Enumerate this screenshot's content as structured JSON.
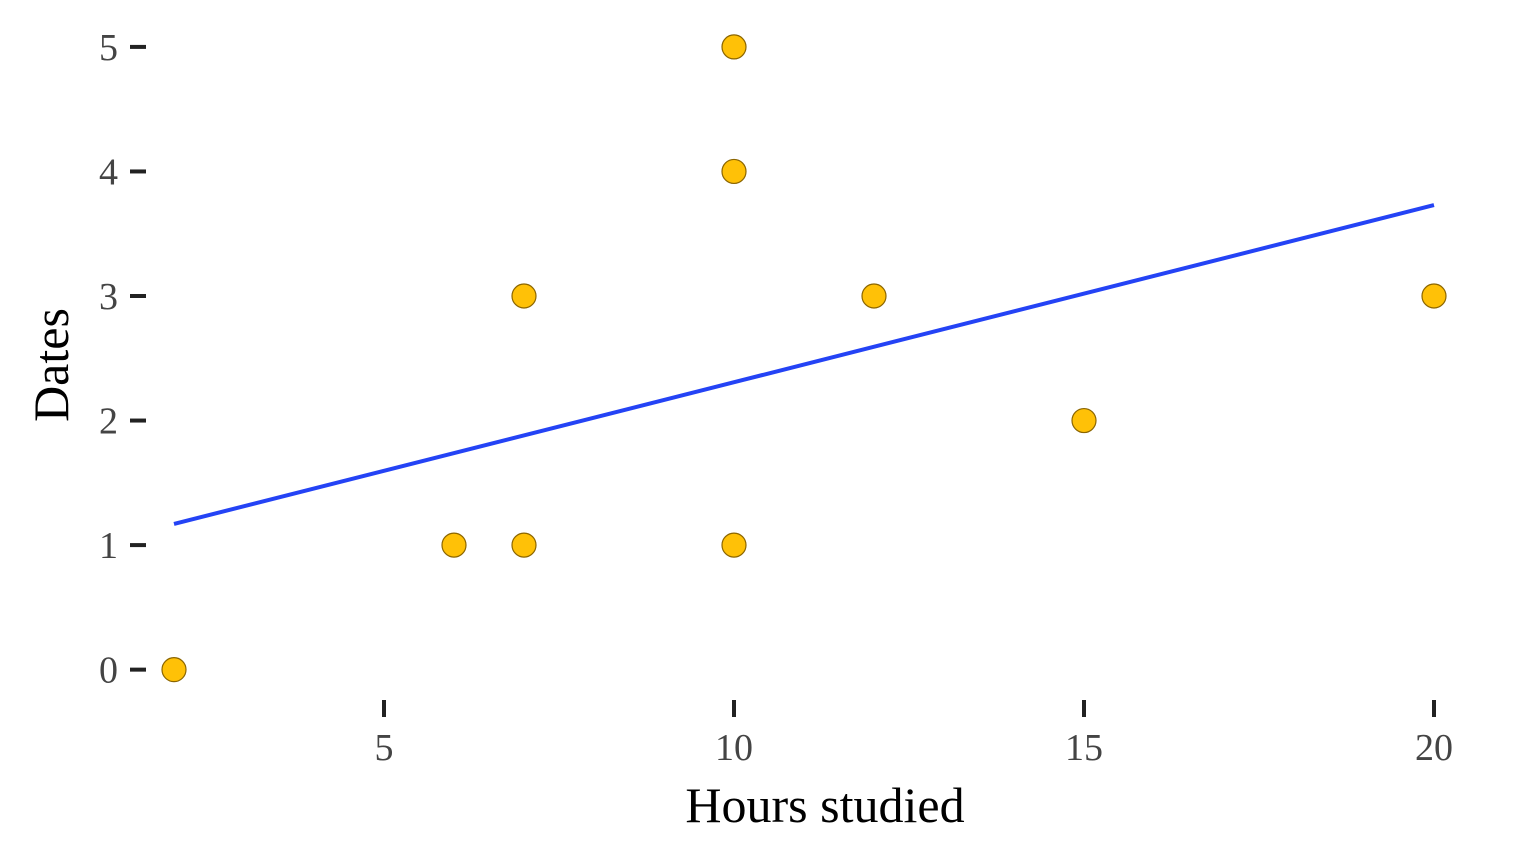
{
  "chart_data": {
    "type": "scatter",
    "title": "",
    "xlabel": "Hours studied",
    "ylabel": "Dates",
    "xlim": [
      1.8,
      20.8
    ],
    "ylim": [
      -0.3,
      5.2
    ],
    "x_ticks": [
      5,
      10,
      15,
      20
    ],
    "y_ticks": [
      0,
      1,
      2,
      3,
      4,
      5
    ],
    "grid": false,
    "legend": "none",
    "points": [
      {
        "x": 2,
        "y": 0
      },
      {
        "x": 6,
        "y": 1
      },
      {
        "x": 7,
        "y": 1
      },
      {
        "x": 7,
        "y": 3
      },
      {
        "x": 10,
        "y": 1
      },
      {
        "x": 10,
        "y": 4
      },
      {
        "x": 10,
        "y": 5
      },
      {
        "x": 12,
        "y": 3
      },
      {
        "x": 15,
        "y": 2
      },
      {
        "x": 20,
        "y": 3
      }
    ],
    "trend_line": {
      "x": [
        2,
        20
      ],
      "y": [
        1.17,
        3.73
      ]
    },
    "colors": {
      "point_fill": "#FFC107",
      "point_stroke": "#8B6500",
      "trend_line": "#2443F5",
      "tick_text": "#444444",
      "axis_title": "#000000"
    }
  }
}
